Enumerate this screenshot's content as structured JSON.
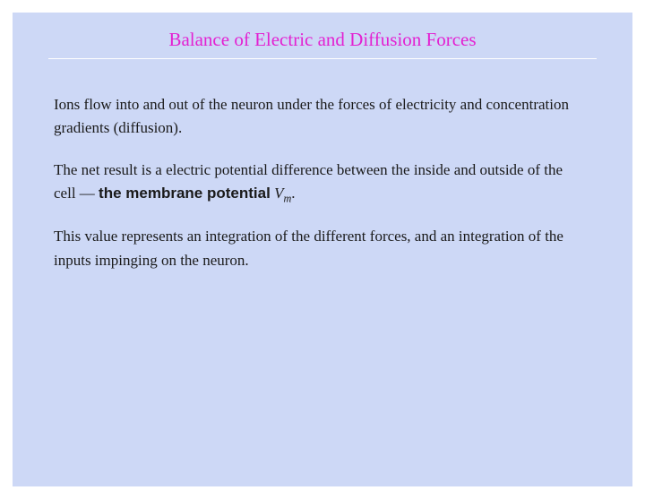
{
  "slide": {
    "title": "Balance of Electric and Diffusion Forces",
    "title_color": "#e321d2",
    "background_outer": "#ffffff",
    "background_inner": "#cdd8f6",
    "rule_color": "#ffffff",
    "text_color": "#1a1a1a",
    "body_fontsize": 17,
    "title_fontsize": 21,
    "para1": "Ions flow into and out of the neuron under the forces of electricity and concentration gradients (diffusion).",
    "para2_a": "The net result is a electric potential difference between the inside and outside of the cell — ",
    "para2_bold": "the membrane potential",
    "para2_sym_main": "V",
    "para2_sym_sub": "m",
    "para2_end": ".",
    "para3": "This value represents an integration of the different forces, and an integration of the inputs impinging on the neuron."
  }
}
